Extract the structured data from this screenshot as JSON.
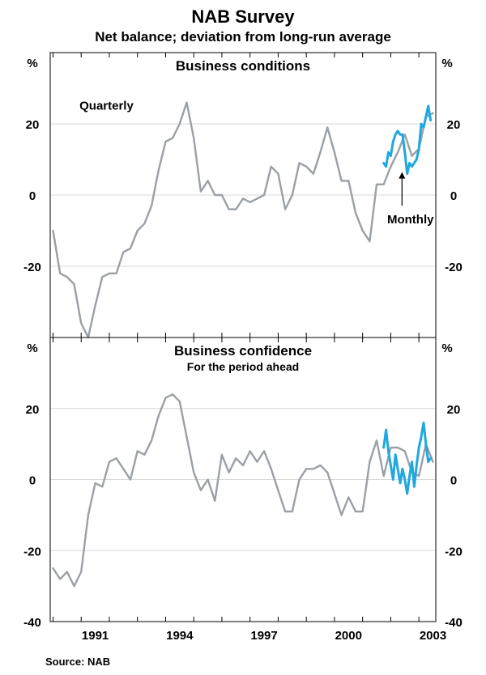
{
  "chart_data": {
    "type": "line",
    "title": "NAB Survey",
    "subtitle": "Net balance; deviation from long-run average",
    "source": "Source: NAB",
    "unit_label": "%",
    "x_ticks": [
      {
        "label": "1991",
        "value": 1991
      },
      {
        "label": "1994",
        "value": 1994
      },
      {
        "label": "1997",
        "value": 1997
      },
      {
        "label": "2000",
        "value": 2000
      },
      {
        "label": "2003",
        "value": 2003
      }
    ],
    "xlim": [
      1989.9,
      2003.6
    ],
    "colors": {
      "quarterly": "#9aa0a6",
      "monthly": "#1fa8e0",
      "grid": "#d9d9d9",
      "axis": "#000000",
      "pointer": "#000000"
    },
    "panels": [
      {
        "title": "Business conditions",
        "subtitle": "",
        "ylim": [
          -40,
          40
        ],
        "y_ticks": [
          {
            "label": "20",
            "value": 20
          },
          {
            "label": "0",
            "value": 0
          },
          {
            "label": "-20",
            "value": -20
          }
        ],
        "annotations": [
          {
            "text": "Quarterly",
            "x": 1991.9,
            "y": 24
          },
          {
            "text": "Monthly",
            "x": 2002.7,
            "y": -8
          }
        ],
        "pointer": {
          "from": [
            2002.4,
            -3
          ],
          "to": [
            2002.4,
            6
          ]
        },
        "series": [
          {
            "name": "Quarterly",
            "x": [
              1990.0,
              1990.25,
              1990.5,
              1990.75,
              1991.0,
              1991.25,
              1991.5,
              1991.75,
              1992.0,
              1992.25,
              1992.5,
              1992.75,
              1993.0,
              1993.25,
              1993.5,
              1993.75,
              1994.0,
              1994.25,
              1994.5,
              1994.75,
              1995.0,
              1995.25,
              1995.5,
              1995.75,
              1996.0,
              1996.25,
              1996.5,
              1996.75,
              1997.0,
              1997.25,
              1997.5,
              1997.75,
              1998.0,
              1998.25,
              1998.5,
              1998.75,
              1999.0,
              1999.25,
              1999.5,
              1999.75,
              2000.0,
              2000.25,
              2000.5,
              2000.75,
              2001.0,
              2001.25,
              2001.5,
              2001.75,
              2002.0,
              2002.25,
              2002.5,
              2002.75,
              2003.0,
              2003.25,
              2003.5
            ],
            "values": [
              -10,
              -22,
              -23,
              -25,
              -36,
              -40,
              -31,
              -23,
              -22,
              -22,
              -16,
              -15,
              -10,
              -8,
              -3,
              7,
              15,
              16,
              20,
              26,
              16,
              1,
              4,
              0,
              0,
              -4,
              -4,
              -1,
              -2,
              -1,
              0,
              8,
              6,
              -4,
              0,
              9,
              8,
              6,
              12,
              19,
              12,
              4,
              4,
              -5,
              -10,
              -13,
              3,
              3,
              8,
              12,
              17,
              11,
              13,
              22,
              23
            ]
          },
          {
            "name": "Monthly",
            "x": [
              2001.75,
              2001.833,
              2001.917,
              2002.0,
              2002.083,
              2002.167,
              2002.25,
              2002.333,
              2002.417,
              2002.5,
              2002.583,
              2002.667,
              2002.75,
              2002.833,
              2002.917,
              2003.0,
              2003.083,
              2003.167,
              2003.25,
              2003.333,
              2003.417
            ],
            "values": [
              9,
              8,
              12,
              11,
              15,
              17,
              18,
              17,
              17,
              12,
              6,
              9,
              8,
              9,
              10,
              13,
              20,
              19,
              22,
              25,
              21
            ]
          }
        ]
      },
      {
        "title": "Business confidence",
        "subtitle": "For the period ahead",
        "ylim": [
          -40,
          40
        ],
        "y_ticks": [
          {
            "label": "20",
            "value": 20
          },
          {
            "label": "0",
            "value": 0
          },
          {
            "label": "-20",
            "value": -20
          },
          {
            "label": "-40",
            "value": -40
          }
        ],
        "annotations": [],
        "pointer": null,
        "series": [
          {
            "name": "Quarterly",
            "x": [
              1990.0,
              1990.25,
              1990.5,
              1990.75,
              1991.0,
              1991.25,
              1991.5,
              1991.75,
              1992.0,
              1992.25,
              1992.5,
              1992.75,
              1993.0,
              1993.25,
              1993.5,
              1993.75,
              1994.0,
              1994.25,
              1994.5,
              1994.75,
              1995.0,
              1995.25,
              1995.5,
              1995.75,
              1996.0,
              1996.25,
              1996.5,
              1996.75,
              1997.0,
              1997.25,
              1997.5,
              1997.75,
              1998.0,
              1998.25,
              1998.5,
              1998.75,
              1999.0,
              1999.25,
              1999.5,
              1999.75,
              2000.0,
              2000.25,
              2000.5,
              2000.75,
              2001.0,
              2001.25,
              2001.5,
              2001.75,
              2002.0,
              2002.25,
              2002.5,
              2002.75,
              2003.0,
              2003.25,
              2003.5
            ],
            "values": [
              -25,
              -28,
              -26,
              -30,
              -26,
              -10,
              -1,
              -2,
              5,
              6,
              3,
              0,
              8,
              7,
              11,
              18,
              23,
              24,
              22,
              12,
              2,
              -3,
              0,
              -6,
              7,
              2,
              6,
              4,
              8,
              5,
              8,
              3,
              -3,
              -9,
              -9,
              0,
              3,
              3,
              4,
              2,
              -4,
              -10,
              -5,
              -9,
              -9,
              5,
              11,
              1,
              9,
              9,
              8,
              2,
              1,
              10,
              5
            ]
          },
          {
            "name": "Monthly",
            "x": [
              2001.75,
              2001.833,
              2001.917,
              2002.0,
              2002.083,
              2002.167,
              2002.25,
              2002.333,
              2002.417,
              2002.5,
              2002.583,
              2002.667,
              2002.75,
              2002.833,
              2002.917,
              2003.0,
              2003.083,
              2003.167,
              2003.25,
              2003.333,
              2003.417
            ],
            "values": [
              9,
              14,
              8,
              4,
              0,
              7,
              3,
              -1,
              3,
              0,
              -4,
              1,
              5,
              -2,
              4,
              9,
              12,
              16,
              10,
              5,
              6
            ]
          }
        ]
      }
    ]
  }
}
